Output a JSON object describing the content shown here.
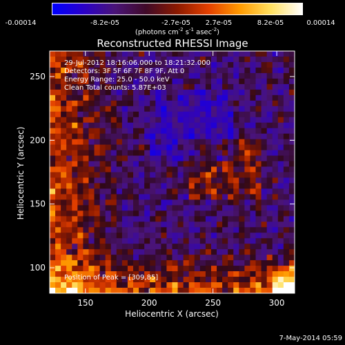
{
  "colorbar": {
    "ticks": [
      "-0.00014",
      "-8.2e-05",
      "-2.7e-05",
      "2.7e-05",
      "8.2e-05",
      "0.00014"
    ],
    "unit_prefix": "(photons cm",
    "unit_exp1": "-2",
    "unit_mid1": " s",
    "unit_exp2": "-1",
    "unit_mid2": " asec",
    "unit_exp3": "-2",
    "unit_suffix": ")",
    "colors": [
      "#0000ff",
      "#2a00c8",
      "#4a1478",
      "#400a28",
      "#8c1a00",
      "#e44000",
      "#ff9a00",
      "#ffe060",
      "#ffffff"
    ]
  },
  "annotations": {
    "time_range": "29-Jul-2012 18:16:06.000 to 18:21:32.000",
    "detectors": "Detectors: 3F 5F 6F 7F 8F 9F, Att 0",
    "energy": "Energy Range: 25.0 - 50.0 keV",
    "method": "Clean    Total counts: 5.87E+03",
    "peak": "Position of Peak = [309,85]"
  },
  "footer": "7-May-2014 05:59",
  "chart_data": {
    "type": "heatmap",
    "title": "Reconstructed RHESSI Image",
    "xlabel": "Heliocentric X (arcsec)",
    "ylabel": "Heliocentric Y (arcsec)",
    "xlim": [
      122,
      314
    ],
    "ylim": [
      80,
      270
    ],
    "xticks": [
      150,
      200,
      250,
      300
    ],
    "yticks": [
      100,
      150,
      200,
      250
    ],
    "value_range": [
      -0.00014,
      0.00014
    ],
    "peak": [
      309,
      85
    ],
    "grid_cols": 44,
    "grid_rows": 44
  }
}
